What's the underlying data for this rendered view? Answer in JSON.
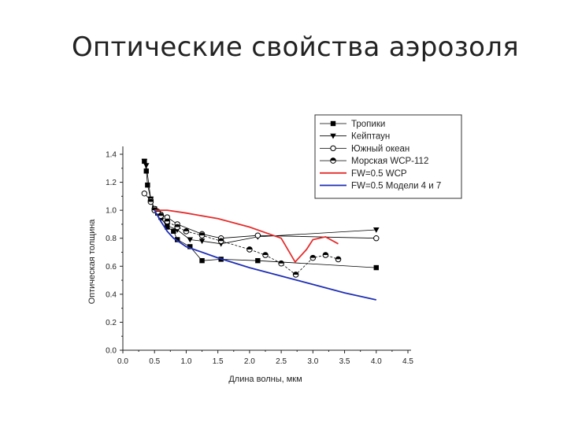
{
  "title": "Оптические свойства аэрозоля",
  "chart_data": {
    "type": "line",
    "title": "",
    "xlabel": "Длина волны, мкм",
    "ylabel": "Оптическая толщина",
    "xlim": [
      0.0,
      4.5
    ],
    "ylim": [
      0.0,
      1.4
    ],
    "x_ticks": [
      "0.0",
      "0.5",
      "1.0",
      "1.5",
      "2.0",
      "2.5",
      "3.0",
      "3.5",
      "4.0",
      "4.5"
    ],
    "y_ticks": [
      "0.0",
      "0.2",
      "0.4",
      "0.6",
      "0.8",
      "1.0",
      "1.2",
      "1.4"
    ],
    "grid": false,
    "legend_position": "top-right",
    "series": [
      {
        "name": "Тропики",
        "marker": "square",
        "color": "#000000",
        "x": [
          0.34,
          0.37,
          0.39,
          0.44,
          0.5,
          0.55,
          0.6,
          0.7,
          0.8,
          0.86,
          1.06,
          1.25,
          1.55,
          2.13,
          4.0
        ],
        "y": [
          1.35,
          1.28,
          1.18,
          1.08,
          1.01,
          0.98,
          0.95,
          0.88,
          0.85,
          0.79,
          0.74,
          0.64,
          0.65,
          0.64,
          0.59
        ]
      },
      {
        "name": "Кейптаун",
        "marker": "triangle-down",
        "color": "#000000",
        "x": [
          0.34,
          0.37,
          0.44,
          0.5,
          0.55,
          0.6,
          0.7,
          0.86,
          1.06,
          1.25,
          1.55,
          2.13,
          4.0
        ],
        "y": [
          1.35,
          1.32,
          1.08,
          1.0,
          0.98,
          0.94,
          0.89,
          0.86,
          0.79,
          0.78,
          0.76,
          0.81,
          0.86
        ]
      },
      {
        "name": "Южный океан",
        "marker": "circle-open",
        "color": "#000000",
        "x": [
          0.34,
          0.44,
          0.5,
          0.55,
          0.6,
          0.7,
          0.86,
          1.25,
          1.55,
          2.13,
          4.0
        ],
        "y": [
          1.12,
          1.07,
          1.01,
          0.99,
          0.97,
          0.95,
          0.9,
          0.83,
          0.8,
          0.82,
          0.8
        ]
      },
      {
        "name": "Морская WCP-112",
        "marker": "circle-half",
        "color": "#000000",
        "x": [
          0.44,
          0.5,
          0.55,
          0.6,
          0.7,
          0.86,
          1.0,
          1.25,
          1.55,
          2.0,
          2.25,
          2.5,
          2.73,
          3.0,
          3.2,
          3.4
        ],
        "y": [
          1.06,
          1.0,
          0.99,
          0.96,
          0.92,
          0.88,
          0.85,
          0.82,
          0.78,
          0.72,
          0.68,
          0.62,
          0.54,
          0.66,
          0.68,
          0.65
        ]
      },
      {
        "name": "FW=0.5  WCP",
        "marker": "none",
        "color": "#e52d2d",
        "x": [
          0.5,
          0.7,
          1.0,
          1.5,
          2.0,
          2.5,
          2.72,
          2.9,
          3.0,
          3.2,
          3.4
        ],
        "y": [
          1.0,
          1.0,
          0.98,
          0.94,
          0.88,
          0.8,
          0.63,
          0.72,
          0.79,
          0.81,
          0.76
        ]
      },
      {
        "name": "FW=0.5 Модели 4 и 7",
        "marker": "none",
        "color": "#1f2fb5",
        "x": [
          0.5,
          0.6,
          0.7,
          0.8,
          0.9,
          1.0,
          1.5,
          2.0,
          2.5,
          3.0,
          3.5,
          4.0
        ],
        "y": [
          1.0,
          0.92,
          0.85,
          0.8,
          0.77,
          0.74,
          0.66,
          0.59,
          0.53,
          0.47,
          0.41,
          0.36
        ]
      }
    ]
  }
}
